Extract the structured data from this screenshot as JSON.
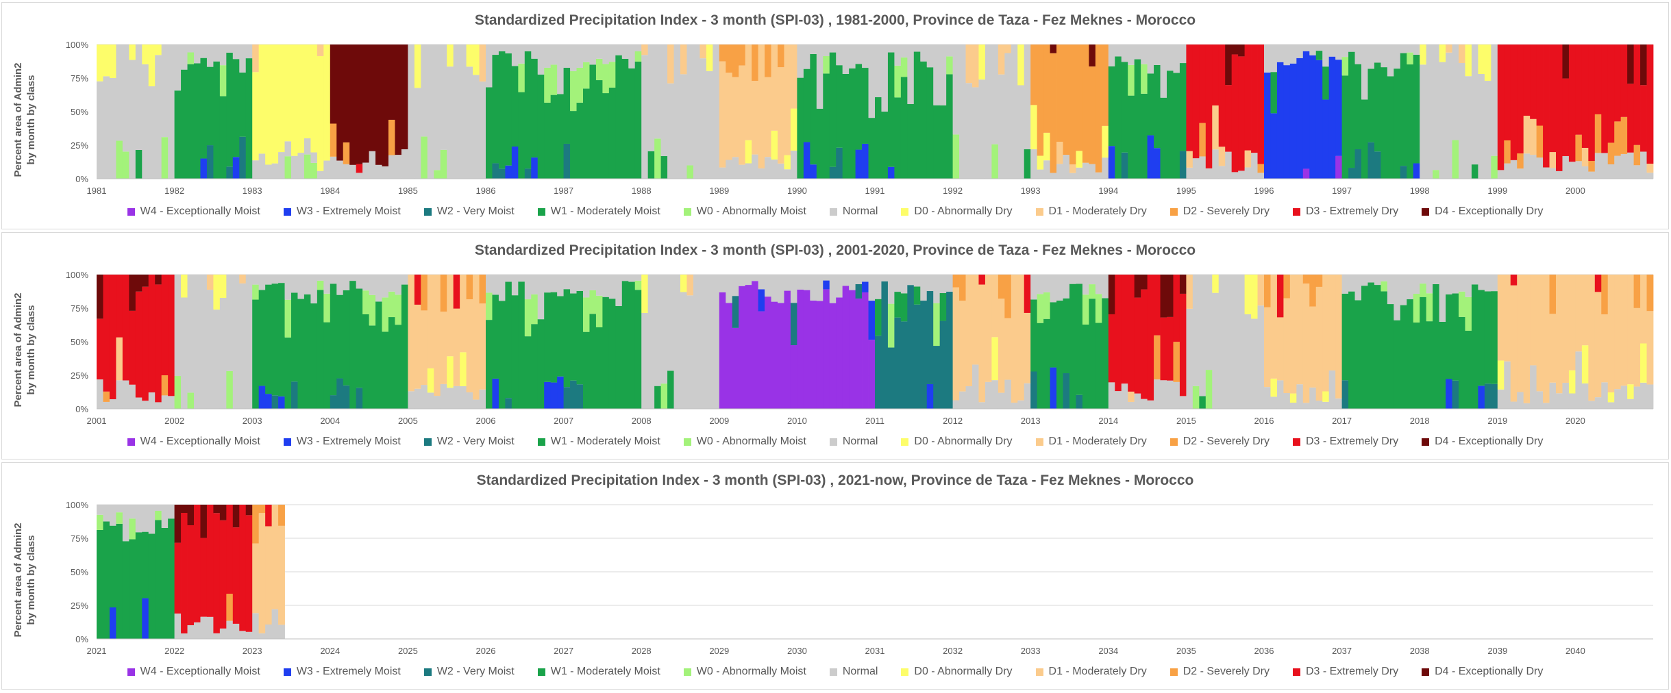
{
  "ylabel_line1": "Percent area of Admin2",
  "ylabel_line2": "by month by class",
  "yticks": [
    "0%",
    "25%",
    "50%",
    "75%",
    "100%"
  ],
  "classes": [
    {
      "label": "W4 - Exceptionally Moist",
      "color": "#9933e6"
    },
    {
      "label": "W3 - Extremely Moist",
      "color": "#1f3ef0"
    },
    {
      "label": "W2 - Very Moist",
      "color": "#1c7a80"
    },
    {
      "label": "W1 - Moderately Moist",
      "color": "#1aa34a"
    },
    {
      "label": "W0 - Abnormally Moist",
      "color": "#a3f27a"
    },
    {
      "label": "Normal",
      "color": "#cccccc"
    },
    {
      "label": "D0 - Abnormally Dry",
      "color": "#fdfd6a"
    },
    {
      "label": "D1 - Moderately Dry",
      "color": "#fbcb8c"
    },
    {
      "label": "D2 - Severely Dry",
      "color": "#f8a145"
    },
    {
      "label": "D3 - Extremely Dry",
      "color": "#e8111d"
    },
    {
      "label": "D4 - Exceptionally Dry",
      "color": "#6e0a0a"
    }
  ],
  "panels": [
    {
      "title": "Standardized Precipitation Index - 3 month (SPI-03) , 1981-2000, Province de Taza - Fez Meknes - Morocco",
      "xticks": [
        "1981",
        "1982",
        "1983",
        "1984",
        "1985",
        "1986",
        "1987",
        "1988",
        "1989",
        "1990",
        "1991",
        "1992",
        "1993",
        "1994",
        "1995",
        "1996",
        "1997",
        "1998",
        "1999",
        "2000"
      ]
    },
    {
      "title": "Standardized Precipitation Index - 3 month (SPI-03) , 2001-2020, Province de Taza - Fez Meknes - Morocco",
      "xticks": [
        "2001",
        "2002",
        "2003",
        "2004",
        "2005",
        "2006",
        "2007",
        "2008",
        "2009",
        "2010",
        "2011",
        "2012",
        "2013",
        "2014",
        "2015",
        "2016",
        "2017",
        "2018",
        "2019",
        "2020"
      ]
    },
    {
      "title": "Standardized Precipitation Index - 3 month (SPI-03) , 2021-now, Province de Taza - Fez Meknes - Morocco",
      "xticks": [
        "2021",
        "2022",
        "2023",
        "2024",
        "2025",
        "2026",
        "2027",
        "2028",
        "2029",
        "2030",
        "2031",
        "2032",
        "2033",
        "2034",
        "2035",
        "2036",
        "2037",
        "2038",
        "2039",
        "2040"
      ]
    }
  ],
  "chart_data": [
    {
      "type": "bar",
      "stacked": true,
      "title": "Standardized Precipitation Index - 3 month (SPI-03) , 1981-2000, Province de Taza - Fez Meknes - Morocco",
      "x_range": [
        "1981-01",
        "2000-12"
      ],
      "ylim": [
        0,
        100
      ],
      "ylabel": "Percent area of Admin2 by month by class",
      "dominant_class_by_year": [
        {
          "year": "1981",
          "dominant": "Normal"
        },
        {
          "year": "1982",
          "dominant": "W1 - Moderately Moist"
        },
        {
          "year": "1983",
          "dominant": "D0 - Abnormally Dry"
        },
        {
          "year": "1984",
          "dominant": "D4 - Exceptionally Dry"
        },
        {
          "year": "1985",
          "dominant": "Normal"
        },
        {
          "year": "1986",
          "dominant": "W1 - Moderately Moist"
        },
        {
          "year": "1987",
          "dominant": "W1 - Moderately Moist"
        },
        {
          "year": "1988",
          "dominant": "Normal"
        },
        {
          "year": "1989",
          "dominant": "D1 - Moderately Dry"
        },
        {
          "year": "1990",
          "dominant": "W1 - Moderately Moist"
        },
        {
          "year": "1991",
          "dominant": "W1 - Moderately Moist"
        },
        {
          "year": "1992",
          "dominant": "Normal"
        },
        {
          "year": "1993",
          "dominant": "D2 - Severely Dry"
        },
        {
          "year": "1994",
          "dominant": "W1 - Moderately Moist"
        },
        {
          "year": "1995",
          "dominant": "D3 - Extremely Dry"
        },
        {
          "year": "1996",
          "dominant": "W3 - Extremely Moist"
        },
        {
          "year": "1997",
          "dominant": "W1 - Moderately Moist"
        },
        {
          "year": "1998",
          "dominant": "Normal"
        },
        {
          "year": "1999",
          "dominant": "D3 - Extremely Dry"
        },
        {
          "year": "2000",
          "dominant": "D3 - Extremely Dry"
        }
      ]
    },
    {
      "type": "bar",
      "stacked": true,
      "title": "Standardized Precipitation Index - 3 month (SPI-03) , 2001-2020, Province de Taza - Fez Meknes - Morocco",
      "x_range": [
        "2001-01",
        "2020-12"
      ],
      "ylim": [
        0,
        100
      ],
      "ylabel": "Percent area of Admin2 by month by class",
      "dominant_class_by_year": [
        {
          "year": "2001",
          "dominant": "D3 - Extremely Dry"
        },
        {
          "year": "2002",
          "dominant": "Normal"
        },
        {
          "year": "2003",
          "dominant": "W1 - Moderately Moist"
        },
        {
          "year": "2004",
          "dominant": "W1 - Moderately Moist"
        },
        {
          "year": "2005",
          "dominant": "D1 - Moderately Dry"
        },
        {
          "year": "2006",
          "dominant": "W1 - Moderately Moist"
        },
        {
          "year": "2007",
          "dominant": "W1 - Moderately Moist"
        },
        {
          "year": "2008",
          "dominant": "Normal"
        },
        {
          "year": "2009",
          "dominant": "W4 - Exceptionally Moist"
        },
        {
          "year": "2010",
          "dominant": "W4 - Exceptionally Moist"
        },
        {
          "year": "2011",
          "dominant": "W2 - Very Moist"
        },
        {
          "year": "2012",
          "dominant": "D1 - Moderately Dry"
        },
        {
          "year": "2013",
          "dominant": "W1 - Moderately Moist"
        },
        {
          "year": "2014",
          "dominant": "D3 - Extremely Dry"
        },
        {
          "year": "2015",
          "dominant": "Normal"
        },
        {
          "year": "2016",
          "dominant": "D1 - Moderately Dry"
        },
        {
          "year": "2017",
          "dominant": "W1 - Moderately Moist"
        },
        {
          "year": "2018",
          "dominant": "W1 - Moderately Moist"
        },
        {
          "year": "2019",
          "dominant": "D1 - Moderately Dry"
        },
        {
          "year": "2020",
          "dominant": "D1 - Moderately Dry"
        }
      ]
    },
    {
      "type": "bar",
      "stacked": true,
      "title": "Standardized Precipitation Index - 3 month (SPI-03) , 2021-now, Province de Taza - Fez Meknes - Morocco",
      "x_range": [
        "2021-01",
        "2040-12"
      ],
      "data_until": "2023-05",
      "ylim": [
        0,
        100
      ],
      "ylabel": "Percent area of Admin2 by month by class",
      "dominant_class_by_year": [
        {
          "year": "2021",
          "dominant": "W1 - Moderately Moist"
        },
        {
          "year": "2022",
          "dominant": "D3 - Extremely Dry"
        },
        {
          "year": "2023",
          "dominant": "D1 - Moderately Dry"
        }
      ]
    }
  ]
}
